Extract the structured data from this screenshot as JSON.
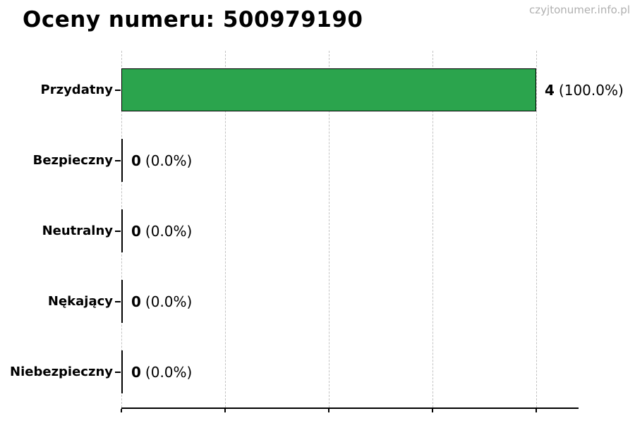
{
  "page": {
    "watermark": "czyjtonumer.info.pl"
  },
  "chart_data": {
    "type": "bar",
    "orientation": "horizontal",
    "title": "Oceny numeru: 500979190",
    "categories": [
      "Przydatny",
      "Bezpieczny",
      "Neutralny",
      "Nękający",
      "Niebezpieczny"
    ],
    "values": [
      4,
      0,
      0,
      0,
      0
    ],
    "percentages": [
      100.0,
      0.0,
      0.0,
      0.0,
      0.0
    ],
    "value_labels": [
      {
        "num": "4",
        "pct": "(100.0%)"
      },
      {
        "num": "0",
        "pct": "(0.0%)"
      },
      {
        "num": "0",
        "pct": "(0.0%)"
      },
      {
        "num": "0",
        "pct": "(0.0%)"
      },
      {
        "num": "0",
        "pct": "(0.0%)"
      }
    ],
    "xlabel": "",
    "ylabel": "",
    "xlim": [
      0,
      4.42
    ],
    "xticks": [
      0,
      1,
      2,
      3,
      4
    ],
    "grid": "vertical-dashed",
    "legend": "none",
    "bar_color": "#2BA44D",
    "bar_border_color": "#000000",
    "grid_color": "#c3c3c3",
    "axis_color": "#000000",
    "watermark_color": "#b0b0b0"
  }
}
